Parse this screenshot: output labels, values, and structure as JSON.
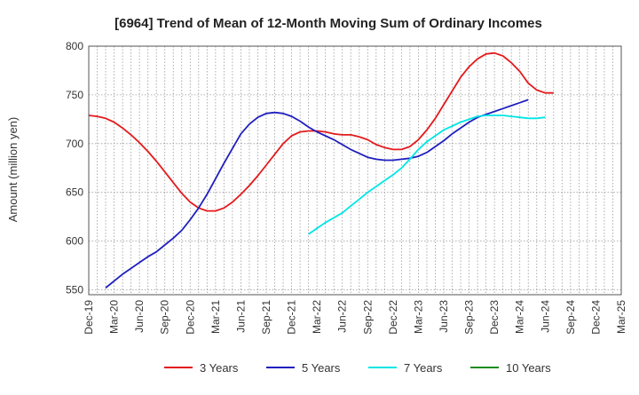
{
  "chart_data": {
    "type": "line",
    "title": "[6964]  Trend of Mean of 12-Month Moving Sum of Ordinary Incomes",
    "xlabel": "",
    "ylabel": "Amount (million yen)",
    "ylim": [
      545,
      800
    ],
    "yticks": [
      550,
      600,
      650,
      700,
      750,
      800
    ],
    "xticks": [
      "Dec-19",
      "Mar-20",
      "Jun-20",
      "Sep-20",
      "Dec-20",
      "Mar-21",
      "Jun-21",
      "Sep-21",
      "Dec-21",
      "Mar-22",
      "Jun-22",
      "Sep-22",
      "Dec-22",
      "Mar-23",
      "Jun-23",
      "Sep-23",
      "Dec-23",
      "Mar-24",
      "Jun-24",
      "Sep-24",
      "Dec-24",
      "Mar-25"
    ],
    "grid": true,
    "legend_position": "bottom",
    "series": [
      {
        "name": "3 Years",
        "color": "#e31a1c",
        "start_index": 0,
        "values": [
          729,
          728,
          726,
          722,
          716,
          709,
          701,
          692,
          682,
          671,
          660,
          649,
          640,
          634,
          631,
          631,
          634,
          640,
          648,
          657,
          667,
          678,
          689,
          700,
          708,
          712,
          713,
          713,
          712,
          710,
          709,
          709,
          707,
          704,
          699,
          696,
          694,
          694,
          697,
          704,
          714,
          726,
          740,
          754,
          768,
          779,
          787,
          792,
          793,
          790,
          783,
          774,
          762,
          755,
          752,
          752
        ]
      },
      {
        "name": "5 Years",
        "color": "#1f1fbf",
        "start_index": 2,
        "values": [
          552,
          559,
          566,
          572,
          578,
          584,
          589,
          596,
          603,
          611,
          622,
          634,
          648,
          664,
          680,
          695,
          710,
          720,
          727,
          731,
          732,
          731,
          728,
          723,
          717,
          712,
          708,
          704,
          699,
          694,
          690,
          686,
          684,
          683,
          683,
          684,
          685,
          687,
          691,
          697,
          703,
          710,
          716,
          722,
          727,
          730,
          733,
          736,
          739,
          742,
          745
        ]
      },
      {
        "name": "7 Years",
        "color": "#00e5e5",
        "start_index": 26,
        "values": [
          607,
          613,
          619,
          624,
          629,
          636,
          643,
          650,
          656,
          662,
          668,
          675,
          684,
          694,
          702,
          708,
          714,
          718,
          722,
          725,
          728,
          729,
          729,
          729,
          728,
          727,
          726,
          726,
          727
        ]
      },
      {
        "name": "10 Years",
        "color": "#1e8c1e",
        "start_index": 0,
        "values": []
      }
    ]
  }
}
